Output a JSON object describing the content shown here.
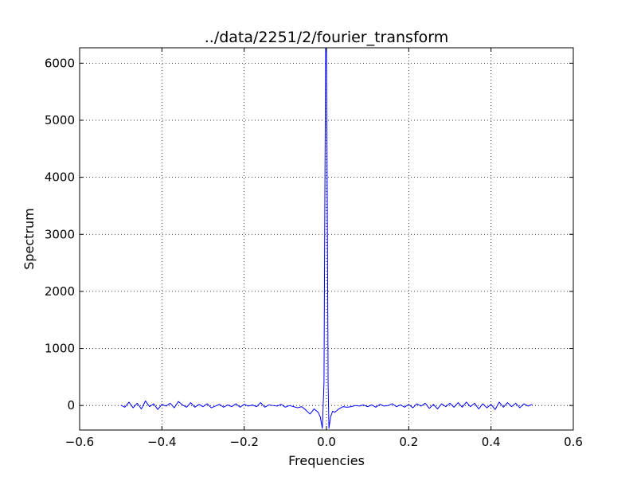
{
  "chart_data": {
    "type": "line",
    "title": "../data/2251/2/fourier_transform",
    "xlabel": "Frequencies",
    "ylabel": "Spectrum",
    "xlim": [
      -0.6,
      0.6
    ],
    "ylim": [
      -430,
      6270
    ],
    "grid": true,
    "legend": "none",
    "line_color": "#0000ff",
    "xticks": [
      {
        "value": -0.6,
        "label": "−0.6"
      },
      {
        "value": -0.4,
        "label": "−0.4"
      },
      {
        "value": -0.2,
        "label": "−0.2"
      },
      {
        "value": 0.0,
        "label": "0.0"
      },
      {
        "value": 0.2,
        "label": "0.2"
      },
      {
        "value": 0.4,
        "label": "0.4"
      },
      {
        "value": 0.6,
        "label": "0.6"
      }
    ],
    "yticks": [
      {
        "value": 0,
        "label": "0"
      },
      {
        "value": 1000,
        "label": "1000"
      },
      {
        "value": 2000,
        "label": "2000"
      },
      {
        "value": 3000,
        "label": "3000"
      },
      {
        "value": 4000,
        "label": "4000"
      },
      {
        "value": 5000,
        "label": "5000"
      },
      {
        "value": 6000,
        "label": "6000"
      }
    ],
    "series": [
      {
        "x": [
          -0.5,
          -0.49,
          -0.48,
          -0.47,
          -0.46,
          -0.45,
          -0.44,
          -0.43,
          -0.42,
          -0.41,
          -0.4,
          -0.39,
          -0.38,
          -0.37,
          -0.36,
          -0.35,
          -0.34,
          -0.33,
          -0.32,
          -0.31,
          -0.3,
          -0.29,
          -0.28,
          -0.27,
          -0.26,
          -0.25,
          -0.24,
          -0.23,
          -0.22,
          -0.21,
          -0.2,
          -0.19,
          -0.18,
          -0.17,
          -0.16,
          -0.15,
          -0.14,
          -0.13,
          -0.12,
          -0.11,
          -0.1,
          -0.09,
          -0.08,
          -0.07,
          -0.06,
          -0.05,
          -0.04,
          -0.03,
          -0.02,
          -0.015,
          -0.01,
          -0.006,
          -0.004,
          -0.002,
          0.0,
          0.002,
          0.004,
          0.006,
          0.01,
          0.015,
          0.02,
          0.03,
          0.04,
          0.05,
          0.06,
          0.07,
          0.08,
          0.09,
          0.1,
          0.11,
          0.12,
          0.13,
          0.14,
          0.15,
          0.16,
          0.17,
          0.18,
          0.19,
          0.2,
          0.21,
          0.22,
          0.23,
          0.24,
          0.25,
          0.26,
          0.27,
          0.28,
          0.29,
          0.3,
          0.31,
          0.32,
          0.33,
          0.34,
          0.35,
          0.36,
          0.37,
          0.38,
          0.39,
          0.4,
          0.41,
          0.42,
          0.43,
          0.44,
          0.45,
          0.46,
          0.47,
          0.48,
          0.49,
          0.5
        ],
        "y": [
          5,
          -30,
          60,
          -40,
          40,
          -60,
          80,
          -20,
          30,
          -70,
          20,
          -10,
          40,
          -40,
          70,
          10,
          -30,
          50,
          -30,
          20,
          -20,
          30,
          -40,
          -10,
          20,
          -30,
          10,
          -20,
          30,
          -30,
          20,
          -10,
          10,
          -20,
          50,
          -30,
          10,
          0,
          -10,
          20,
          -30,
          0,
          -20,
          -40,
          -20,
          -80,
          -150,
          -60,
          -120,
          -200,
          -400,
          400,
          3500,
          6270,
          6270,
          3500,
          400,
          -400,
          -200,
          -100,
          -120,
          -60,
          -20,
          -30,
          -20,
          0,
          -10,
          10,
          -20,
          10,
          -30,
          20,
          -10,
          0,
          30,
          -20,
          10,
          -30,
          20,
          -40,
          30,
          -10,
          40,
          -50,
          20,
          -60,
          30,
          -20,
          40,
          -30,
          50,
          -30,
          60,
          -20,
          40,
          -60,
          30,
          -40,
          20,
          -70,
          60,
          -30,
          50,
          -20,
          40,
          -40,
          30,
          -10,
          20
        ]
      }
    ]
  }
}
